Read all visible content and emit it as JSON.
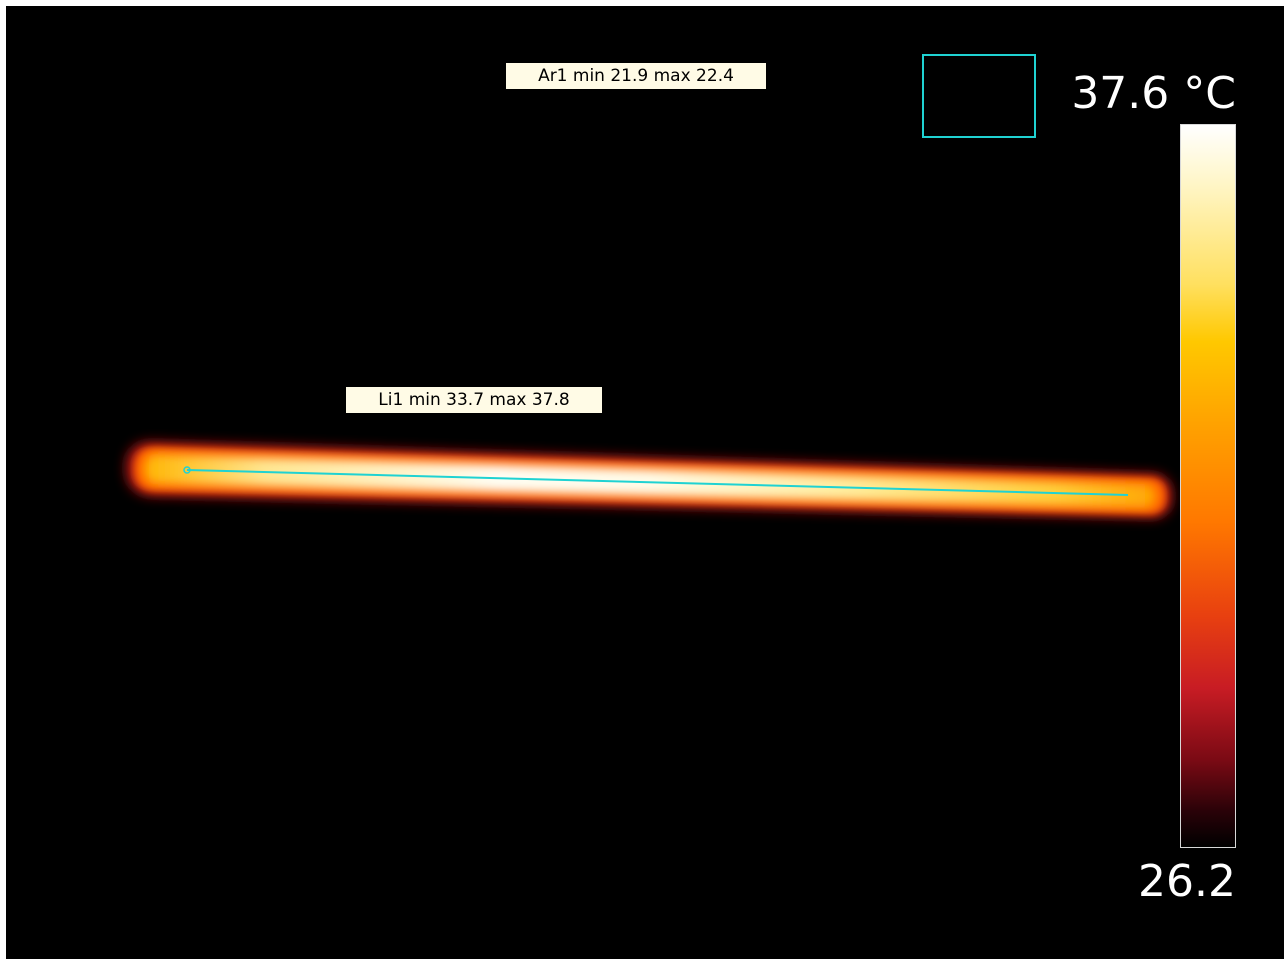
{
  "measurements": {
    "area": {
      "label": "Ar1 min 21.9 max 22.4"
    },
    "line": {
      "label": "Li1 min 33.7 max 37.8"
    }
  },
  "scale": {
    "max_label": "37.6 °C",
    "min_label": "26.2",
    "palette": "iron"
  },
  "colors": {
    "background": "#000000",
    "marker": "#1fd2d2",
    "label_background": "#fffbe6"
  }
}
